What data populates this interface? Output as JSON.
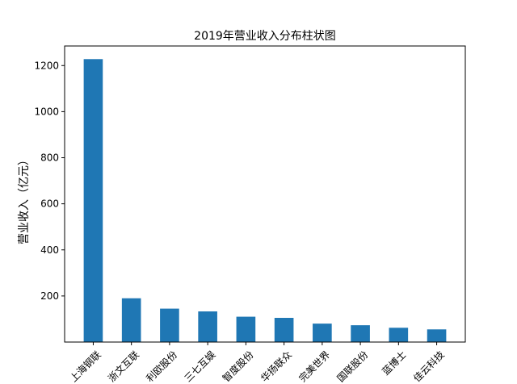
{
  "chart_data": {
    "type": "bar",
    "title": "2019年营业收入分布柱状图",
    "xlabel": "",
    "ylabel": "营业收入（亿元）",
    "categories": [
      "上海钢联",
      "浙文互联",
      "利欧股份",
      "三七互娱",
      "智度股份",
      "华扬联众",
      "完美世界",
      "国联股份",
      "蓝博士",
      "佳云科技"
    ],
    "values": [
      1228,
      190,
      145,
      133,
      110,
      105,
      80,
      73,
      62,
      55
    ],
    "ylim": [
      0,
      1285
    ],
    "yticks": [
      200,
      400,
      600,
      800,
      1000,
      1200
    ],
    "x_tick_rotation": 45,
    "bar_color": "#1f77b4",
    "grid": false,
    "legend": "none"
  }
}
